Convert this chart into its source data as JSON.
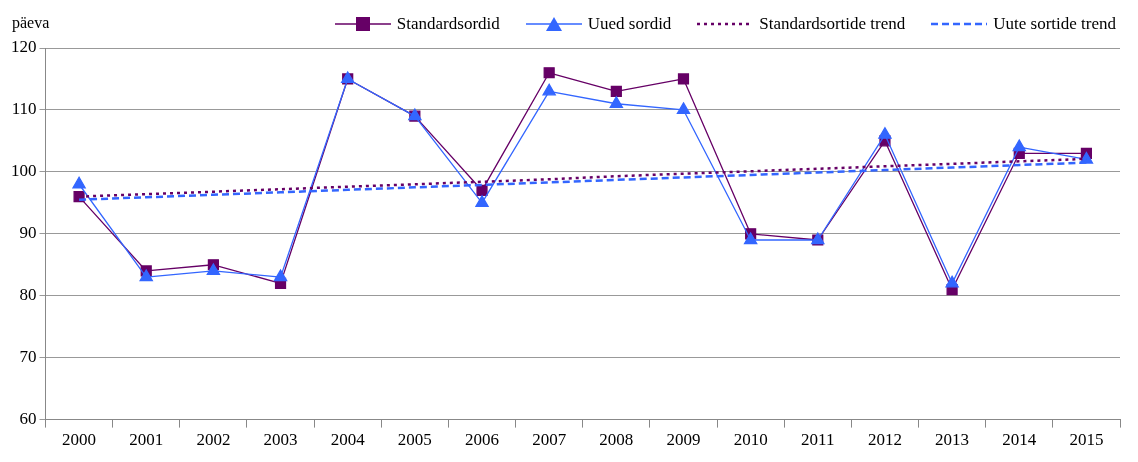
{
  "chart_data": {
    "type": "line",
    "ylabel": "päeva",
    "categories": [
      "2000",
      "2001",
      "2002",
      "2003",
      "2004",
      "2005",
      "2006",
      "2007",
      "2008",
      "2009",
      "2010",
      "2011",
      "2012",
      "2013",
      "2014",
      "2015"
    ],
    "series": [
      {
        "name": "Standardsordid",
        "color": "#660066",
        "marker": "square",
        "line_style": "solid",
        "values": [
          96,
          84,
          85,
          82,
          115,
          109,
          97,
          116,
          113,
          115,
          90,
          89,
          105,
          81,
          103,
          103
        ]
      },
      {
        "name": "Uued sordid",
        "color": "#3366ff",
        "marker": "triangle",
        "line_style": "solid",
        "values": [
          98,
          83,
          84,
          83,
          115,
          109,
          95,
          113,
          111,
          110,
          89,
          89,
          106,
          82,
          104,
          102
        ]
      },
      {
        "name": "Standardsortide trend",
        "color": "#660066",
        "marker": "none",
        "line_style": "dotted",
        "values": [
          96.0,
          96.4,
          96.8,
          97.2,
          97.6,
          98.0,
          98.4,
          98.8,
          99.3,
          99.7,
          100.1,
          100.5,
          100.9,
          101.3,
          101.7,
          102.1
        ]
      },
      {
        "name": "Uute sortide trend",
        "color": "#3366ff",
        "marker": "none",
        "line_style": "dashed",
        "values": [
          95.5,
          95.9,
          96.3,
          96.7,
          97.1,
          97.5,
          97.9,
          98.3,
          98.7,
          99.1,
          99.5,
          99.9,
          100.3,
          100.7,
          101.1,
          101.5
        ]
      }
    ],
    "ylim": [
      60,
      120
    ],
    "yticks": [
      60,
      70,
      80,
      90,
      100,
      110,
      120
    ],
    "grid": "y",
    "legend": "top"
  }
}
